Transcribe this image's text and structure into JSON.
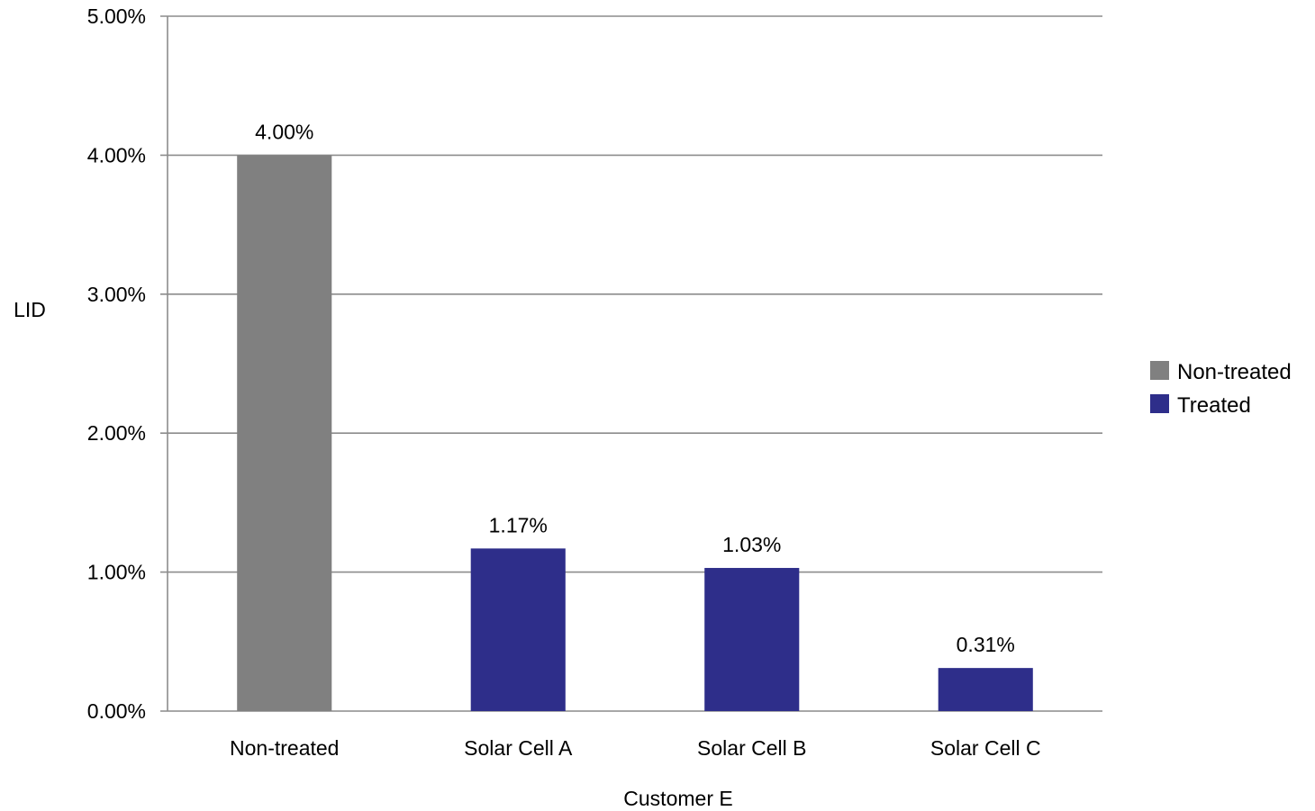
{
  "chart_data": {
    "type": "bar",
    "categories": [
      "Non-treated",
      "Solar Cell A",
      "Solar Cell B",
      "Solar Cell C"
    ],
    "values": [
      4.0,
      1.17,
      1.03,
      0.31
    ],
    "data_labels": [
      "4.00%",
      "1.17%",
      "1.03%",
      "0.31%"
    ],
    "bar_series": [
      "Non-treated",
      "Treated",
      "Treated",
      "Treated"
    ],
    "series": [
      {
        "name": "Non-treated",
        "color": "#808080"
      },
      {
        "name": "Treated",
        "color": "#2e2e8a"
      }
    ],
    "xlabel": "Customer E",
    "ylabel": "LID",
    "ylim": [
      0,
      5
    ],
    "yticks": [
      0,
      1,
      2,
      3,
      4,
      5
    ],
    "ytick_labels": [
      "0.00%",
      "1.00%",
      "2.00%",
      "3.00%",
      "4.00%",
      "5.00%"
    ],
    "grid": true,
    "legend_position": "right"
  }
}
